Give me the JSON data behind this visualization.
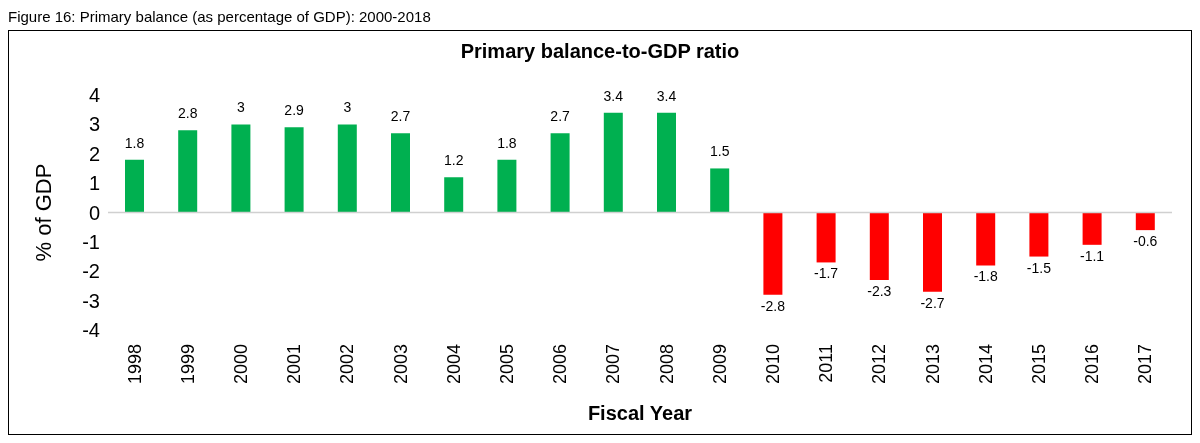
{
  "chart_data": {
    "type": "bar",
    "title": "Primary balance-to-GDP ratio",
    "xlabel": "Fiscal Year",
    "ylabel": "% of GDP",
    "annotations": [
      "Figure 16: Primary balance (as percentage of GDP): 2000-2018"
    ],
    "categories": [
      "1998",
      "1999",
      "2000",
      "2001",
      "2002",
      "2003",
      "2004",
      "2005",
      "2006",
      "2007",
      "2008",
      "2009",
      "2010",
      "2011",
      "2012",
      "2013",
      "2014",
      "2015",
      "2016",
      "2017"
    ],
    "values": [
      1.8,
      2.8,
      3,
      2.9,
      3,
      2.7,
      1.2,
      1.8,
      2.7,
      3.4,
      3.4,
      1.5,
      -2.8,
      -1.7,
      -2.3,
      -2.7,
      -1.8,
      -1.5,
      -1.1,
      -0.6
    ],
    "colors": [
      "#00b050",
      "#00b050",
      "#00b050",
      "#00b050",
      "#00b050",
      "#00b050",
      "#00b050",
      "#00b050",
      "#00b050",
      "#00b050",
      "#00b050",
      "#00b050",
      "#ff0000",
      "#ff0000",
      "#ff0000",
      "#ff0000",
      "#ff0000",
      "#ff0000",
      "#ff0000",
      "#ff0000"
    ],
    "ylim": [
      -4,
      4
    ],
    "yticks": [
      -4,
      -3,
      -2,
      -1,
      0,
      1,
      2,
      3,
      4
    ],
    "data_labels": true
  }
}
